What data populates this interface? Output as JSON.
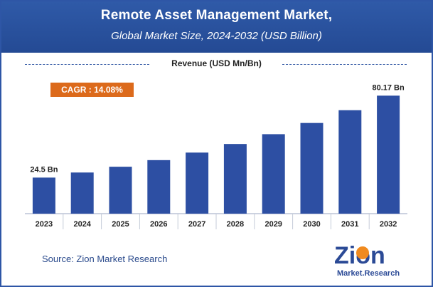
{
  "header": {
    "title": "Remote Asset Management Market,",
    "subtitle": "Global Market Size, 2024-2032 (USD Billion)"
  },
  "legend": {
    "label": "Revenue (USD Mn/Bn)"
  },
  "cagr": {
    "label": "CAGR : 14.08%"
  },
  "source": {
    "text": "Source: Zion Market Research"
  },
  "logo": {
    "line1": "Zion",
    "line2": "Market.Research"
  },
  "colors": {
    "header": "#2f5aa8",
    "bar": "#2d4fa3",
    "accent": "#dc6a1b"
  },
  "chart_data": {
    "type": "bar",
    "categories": [
      "2023",
      "2024",
      "2025",
      "2026",
      "2027",
      "2028",
      "2029",
      "2030",
      "2031",
      "2032"
    ],
    "values": [
      24.5,
      27.95,
      31.88,
      36.37,
      41.49,
      47.34,
      54.0,
      61.61,
      70.28,
      80.17
    ],
    "value_labels": [
      "24.5 Bn",
      "",
      "",
      "",
      "",
      "",
      "",
      "",
      "",
      "80.17 Bn"
    ],
    "title": "Remote Asset Management Market,",
    "subtitle": "Global Market Size, 2024-2032 (USD Billion)",
    "ylim": [
      0,
      90
    ],
    "grid": false,
    "legend": "top-center"
  }
}
